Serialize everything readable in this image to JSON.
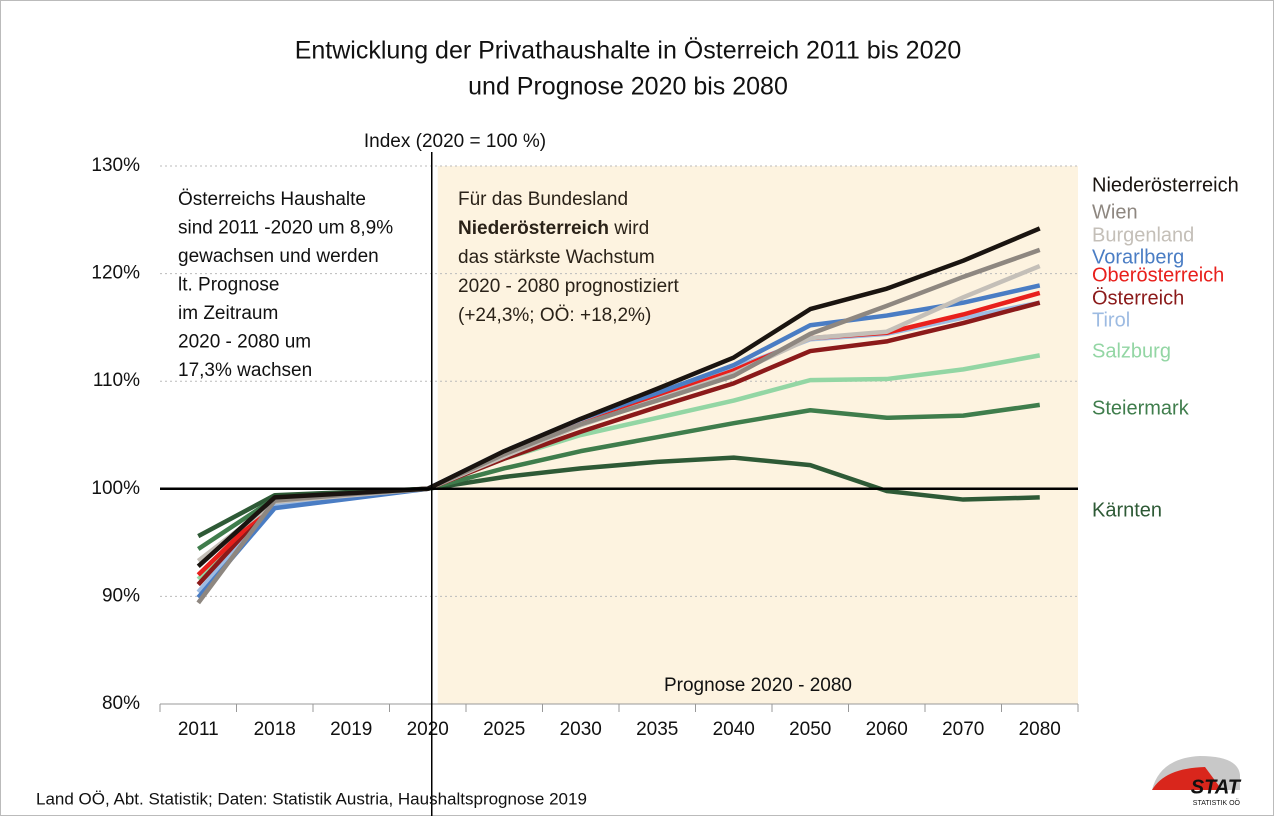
{
  "chart_data": {
    "type": "line",
    "title": [
      "Entwicklung der Privathaushalte in Österreich 2011 bis 2020",
      "und Prognose 2020 bis 2080"
    ],
    "y_axis_label": "Index (2020 = 100 %)",
    "categories": [
      "2011",
      "2018",
      "2019",
      "2020",
      "2025",
      "2030",
      "2035",
      "2040",
      "2050",
      "2060",
      "2070",
      "2080"
    ],
    "ylim": [
      80,
      130
    ],
    "yticks": [
      {
        "value": 80,
        "label": "80%"
      },
      {
        "value": 90,
        "label": "90%"
      },
      {
        "value": 100,
        "label": "100%"
      },
      {
        "value": 110,
        "label": "110%"
      },
      {
        "value": 120,
        "label": "120%"
      },
      {
        "value": 130,
        "label": "130%"
      }
    ],
    "grid": true,
    "reference_line": 100,
    "series": [
      {
        "name": "Kärnten",
        "color": "#2e5a36",
        "values": [
          95.6,
          99.4,
          99.7,
          100,
          101.1,
          101.9,
          102.5,
          102.9,
          102.2,
          99.8,
          99.0,
          99.2
        ]
      },
      {
        "name": "Steiermark",
        "color": "#3f7d4c",
        "values": [
          94.4,
          99.1,
          99.6,
          100,
          101.9,
          103.5,
          104.8,
          106.1,
          107.3,
          106.6,
          106.8,
          107.8
        ]
      },
      {
        "name": "Salzburg",
        "color": "#93d6a4",
        "values": [
          91.6,
          98.8,
          99.4,
          100,
          102.8,
          105.0,
          106.6,
          108.2,
          110.1,
          110.2,
          111.1,
          112.4
        ]
      },
      {
        "name": "Tirol",
        "color": "#9dbbe2",
        "values": [
          90.4,
          98.6,
          99.3,
          100,
          103.3,
          106.2,
          108.7,
          111.2,
          113.9,
          114.4,
          115.9,
          117.3
        ]
      },
      {
        "name": "Österreich",
        "color": "#8b1a1a",
        "values": [
          91.1,
          98.9,
          99.5,
          100,
          102.8,
          105.3,
          107.6,
          109.8,
          112.8,
          113.7,
          115.4,
          117.3
        ]
      },
      {
        "name": "Oberösterreich",
        "color": "#e8201c",
        "values": [
          92.0,
          98.9,
          99.5,
          100,
          103.2,
          106.0,
          108.5,
          111.0,
          114.0,
          114.5,
          116.2,
          118.2
        ]
      },
      {
        "name": "Vorarlberg",
        "color": "#4a7dc4",
        "values": [
          89.9,
          98.2,
          99.1,
          100,
          103.5,
          106.5,
          108.9,
          111.5,
          115.2,
          116.1,
          117.3,
          118.9
        ]
      },
      {
        "name": "Burgenland",
        "color": "#c4bfb8",
        "values": [
          93.3,
          98.8,
          99.4,
          100,
          103.0,
          105.9,
          108.3,
          110.7,
          114.0,
          114.6,
          117.8,
          120.7
        ]
      },
      {
        "name": "Wien",
        "color": "#8e8780",
        "values": [
          89.4,
          98.9,
          99.5,
          100,
          103.2,
          106.0,
          108.2,
          110.5,
          114.4,
          117.0,
          119.7,
          122.2
        ]
      },
      {
        "name": "Niederösterreich",
        "color": "#1a1410",
        "values": [
          92.8,
          99.2,
          99.6,
          100,
          103.5,
          106.5,
          109.3,
          112.2,
          116.7,
          118.6,
          121.2,
          124.2
        ]
      }
    ],
    "note_left": [
      "Österreichs Haushalte",
      "sind 2011 -2020 um 8,9%",
      "gewachsen und werden",
      "lt. Prognose",
      "im Zeitraum",
      "2020 - 2080 um",
      "17,3% wachsen"
    ],
    "note_right": [
      [
        {
          "text": "Für das Bundesland"
        }
      ],
      [
        {
          "text": "Niederösterreich",
          "bold": true
        },
        {
          "text": " wird"
        }
      ],
      [
        {
          "text": "das stärkste Wachstum"
        }
      ],
      [
        {
          "text": "2020 - 2080 prognostiziert"
        }
      ],
      [
        {
          "text": "(+24,3%; OÖ: +18,2%)"
        }
      ]
    ],
    "forecast_label": "Prognose 2020 - 2080",
    "source": "Land OÖ, Abt. Statistik; Daten: Statistik Austria, Haushaltsprognose 2019",
    "logo": {
      "text": "STAT",
      "subtext": "STATISTIK OÖ"
    }
  }
}
